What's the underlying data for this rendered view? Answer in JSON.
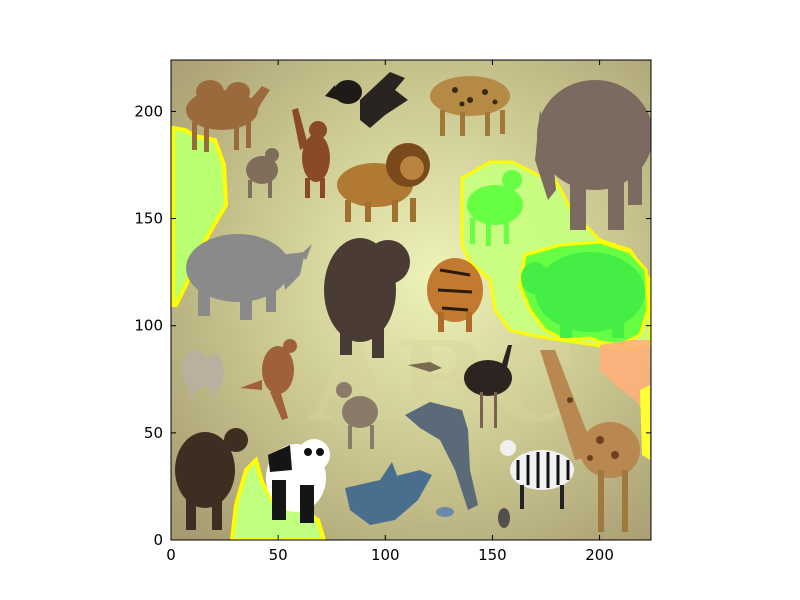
{
  "image_panel": {
    "x_ticks": [
      0,
      50,
      100,
      150,
      200
    ],
    "y_ticks": [
      0,
      50,
      100,
      150,
      200
    ],
    "x_range": [
      0,
      224
    ],
    "y_range": [
      224,
      0
    ],
    "watermark_text": "ABC",
    "background_gradient": [
      "#e6ecb0",
      "#c7c08a",
      "#a89d72"
    ],
    "frame_color": "#000000",
    "tick_color": "#000000",
    "highlight_colors": {
      "fill": "#aaff66",
      "edge": "#ffff00",
      "peach": "#ffb07a"
    },
    "animals": [
      "camel",
      "bird",
      "bird-flying",
      "leopard",
      "elephant",
      "monkey",
      "hyena",
      "lion",
      "goat",
      "rhinoceros",
      "bear",
      "tiger",
      "hippopotamus",
      "lemur",
      "kangaroo",
      "ostrich",
      "giraffe",
      "wolf",
      "dolphin",
      "yak",
      "panda",
      "shark",
      "zebra",
      "small-bird",
      "fish",
      "lizard"
    ]
  }
}
